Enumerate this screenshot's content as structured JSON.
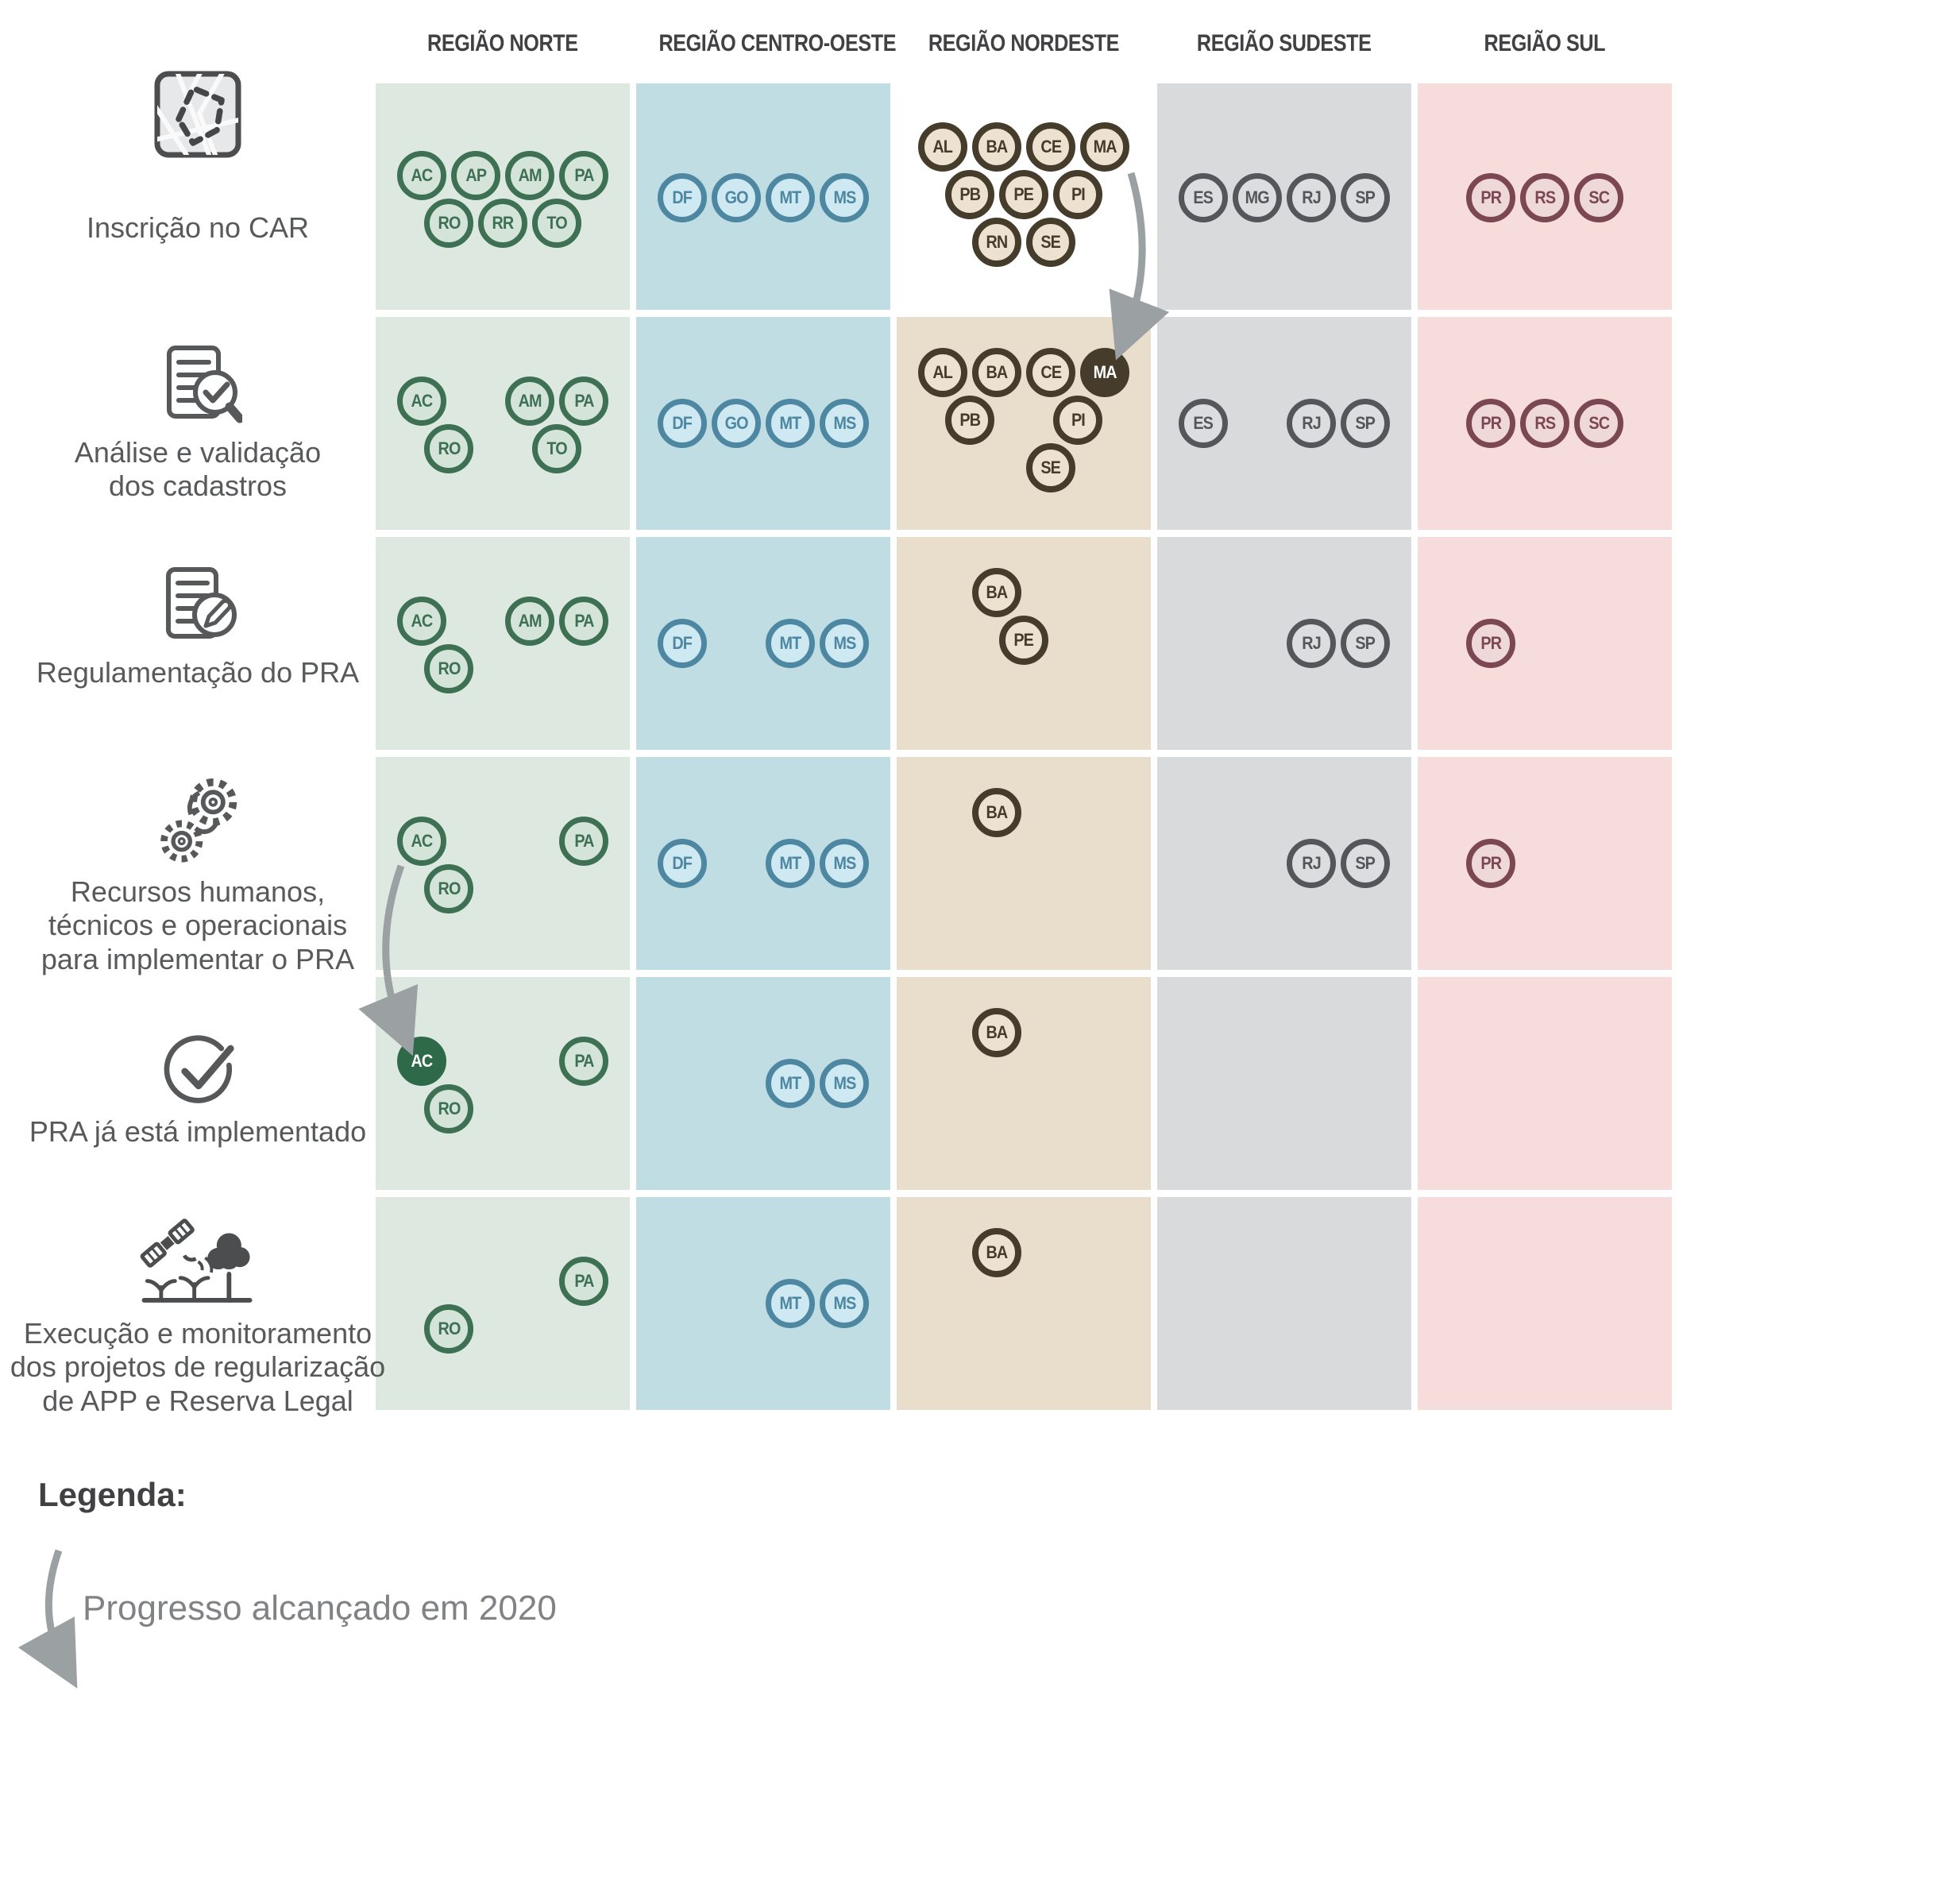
{
  "regions": [
    {
      "id": "norte",
      "name": "REGIÃO NORTE",
      "bg": "#dde9e0",
      "circle_fill": "#d5e4d9",
      "stroke": "#3e7054",
      "filled_bg": "#2e6a49"
    },
    {
      "id": "centro_oeste",
      "name": "REGIÃO CENTRO-OESTE",
      "bg": "#c1dde4",
      "circle_fill": "#cfe9f2",
      "stroke": "#4d87a1",
      "filled_bg": "#3d7791"
    },
    {
      "id": "nordeste",
      "name": "REGIÃO NORDESTE",
      "bg": "#e8decb",
      "circle_fill": "#ece2cf",
      "stroke": "#463c2c",
      "filled_bg": "#463c2c",
      "row1_bg": "#ffffff"
    },
    {
      "id": "sudeste",
      "name": "REGIÃO SUDESTE",
      "bg": "#d9dadb",
      "circle_fill": "#dcddde",
      "stroke": "#54575a",
      "filled_bg": "#54575a"
    },
    {
      "id": "sul",
      "name": "REGIÃO SUL",
      "bg": "#f6dddc",
      "circle_fill": "#eed8d8",
      "stroke": "#7b4750",
      "filled_bg": "#7b4750"
    }
  ],
  "steps": [
    {
      "id": "inscricao",
      "label": "Inscrição no CAR",
      "icon": "map-icon",
      "cells": {
        "norte": [
          "AC",
          "AP",
          "AM",
          "PA",
          "RO",
          "RR",
          "TO"
        ],
        "centro_oeste": [
          "DF",
          "GO",
          "MT",
          "MS"
        ],
        "nordeste": [
          "AL",
          "BA",
          "CE",
          "MA",
          "PB",
          "PE",
          "PI",
          "RN",
          "SE"
        ],
        "sudeste": [
          "ES",
          "MG",
          "RJ",
          "SP"
        ],
        "sul": [
          "PR",
          "RS",
          "SC"
        ]
      },
      "filled": []
    },
    {
      "id": "analise",
      "label": "Análise e validação\ndos cadastros",
      "icon": "document-search-icon",
      "cells": {
        "norte": [
          "AC",
          "AM",
          "PA",
          "RO",
          "TO"
        ],
        "centro_oeste": [
          "DF",
          "GO",
          "MT",
          "MS"
        ],
        "nordeste": [
          "AL",
          "BA",
          "CE",
          "MA",
          "PB",
          "PI",
          "SE"
        ],
        "sudeste": [
          "ES",
          "RJ",
          "SP"
        ],
        "sul": [
          "PR",
          "RS",
          "SC"
        ]
      },
      "filled": [
        "MA"
      ]
    },
    {
      "id": "regulamentacao",
      "label": "Regulamentação do PRA",
      "icon": "document-edit-icon",
      "cells": {
        "norte": [
          "AC",
          "AM",
          "PA",
          "RO"
        ],
        "centro_oeste": [
          "DF",
          "MT",
          "MS"
        ],
        "nordeste": [
          "BA",
          "PE"
        ],
        "sudeste": [
          "RJ",
          "SP"
        ],
        "sul": [
          "PR"
        ]
      },
      "filled": []
    },
    {
      "id": "recursos",
      "label": "Recursos humanos,\ntécnicos e operacionais\npara implementar o PRA",
      "icon": "gears-icon",
      "cells": {
        "norte": [
          "AC",
          "PA",
          "RO"
        ],
        "centro_oeste": [
          "DF",
          "MT",
          "MS"
        ],
        "nordeste": [
          "BA"
        ],
        "sudeste": [
          "RJ",
          "SP"
        ],
        "sul": [
          "PR"
        ]
      },
      "filled": []
    },
    {
      "id": "implementado",
      "label": "PRA já está implementado",
      "icon": "check-icon",
      "cells": {
        "norte": [
          "AC",
          "PA",
          "RO"
        ],
        "centro_oeste": [
          "MT",
          "MS"
        ],
        "nordeste": [
          "BA"
        ],
        "sudeste": [],
        "sul": []
      },
      "filled": [
        "AC"
      ]
    },
    {
      "id": "execucao",
      "label": "Execução e monitoramento\ndos projetos de regularização\nde APP e Reserva Legal",
      "icon": "satellite-icon",
      "cells": {
        "norte": [
          "PA",
          "RO"
        ],
        "centro_oeste": [
          "MT",
          "MS"
        ],
        "nordeste": [
          "BA"
        ],
        "sudeste": [],
        "sul": []
      },
      "filled": []
    }
  ],
  "legend": {
    "title": "Legenda:",
    "arrow_label": "Progresso alcançado em 2020"
  },
  "arrow_color": "#9ba0a3",
  "text_colors": {
    "header": "#414042",
    "label": "#58595b",
    "legend_text": "#808285"
  }
}
